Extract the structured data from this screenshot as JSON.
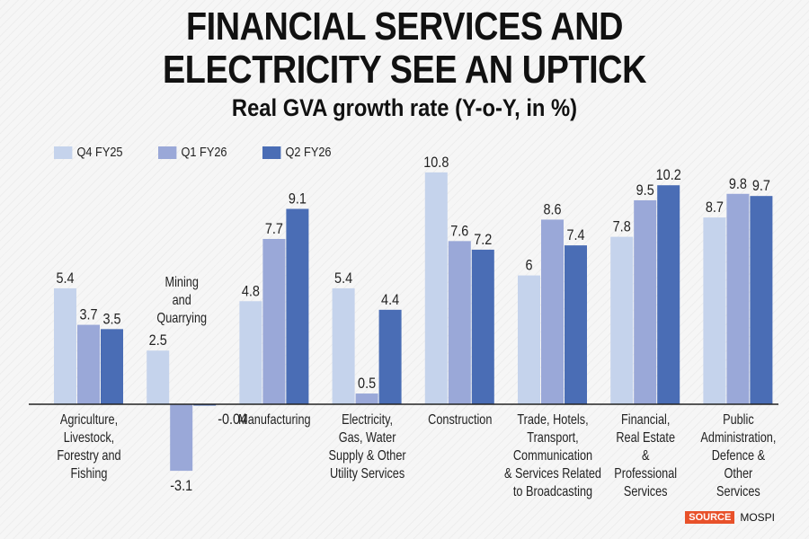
{
  "header": {
    "title_line1": "FINANCIAL SERVICES AND",
    "title_line2": "ELECTRICITY SEE AN UPTICK",
    "subtitle": "Real GVA growth rate (Y-o-Y, in %)"
  },
  "source": {
    "tag": "SOURCE",
    "name": "MOSPI"
  },
  "chart_data": {
    "type": "bar",
    "title": "FINANCIAL SERVICES AND ELECTRICITY SEE AN UPTICK",
    "subtitle": "Real GVA growth rate (Y-o-Y, in %)",
    "xlabel": "",
    "ylabel": "",
    "grid": false,
    "legend_position": "top-left",
    "ylim": [
      -3.5,
      11
    ],
    "categories": [
      [
        "Agriculture,",
        "Livestock,",
        "Forestry and",
        "Fishing"
      ],
      [
        "Mining",
        "and",
        "Quarrying"
      ],
      [
        "Manufacturing"
      ],
      [
        "Electricity,",
        "Gas, Water",
        "Supply & Other",
        "Utility Services"
      ],
      [
        "Construction"
      ],
      [
        "Trade, Hotels,",
        "Transport,",
        "Communication",
        "& Services Related",
        "to Broadcasting"
      ],
      [
        "Financial,",
        "Real Estate",
        "&",
        "Professional",
        "Services"
      ],
      [
        "Public",
        "Administration,",
        "Defence &",
        "Other",
        "Services"
      ]
    ],
    "series": [
      {
        "name": "Q4 FY25",
        "color": "#c5d3ec",
        "values": [
          5.4,
          2.5,
          4.8,
          5.4,
          10.8,
          6,
          7.8,
          8.7
        ],
        "labels": [
          "5.4",
          "2.5",
          "4.8",
          "5.4",
          "10.8",
          "6",
          "7.8",
          "8.7"
        ]
      },
      {
        "name": "Q1 FY26",
        "color": "#9aa8d8",
        "values": [
          3.7,
          -3.1,
          7.7,
          0.5,
          7.6,
          8.6,
          9.5,
          9.8
        ],
        "labels": [
          "3.7",
          "-3.1",
          "7.7",
          "0.5",
          "7.6",
          "8.6",
          "9.5",
          "9.8"
        ]
      },
      {
        "name": "Q2 FY26",
        "color": "#4a6db5",
        "values": [
          3.5,
          -0.04,
          9.1,
          4.4,
          7.2,
          7.4,
          10.2,
          9.7
        ],
        "labels": [
          "3.5",
          "-0.04",
          "9.1",
          "4.4",
          "7.2",
          "7.4",
          "10.2",
          "9.7"
        ]
      }
    ]
  }
}
